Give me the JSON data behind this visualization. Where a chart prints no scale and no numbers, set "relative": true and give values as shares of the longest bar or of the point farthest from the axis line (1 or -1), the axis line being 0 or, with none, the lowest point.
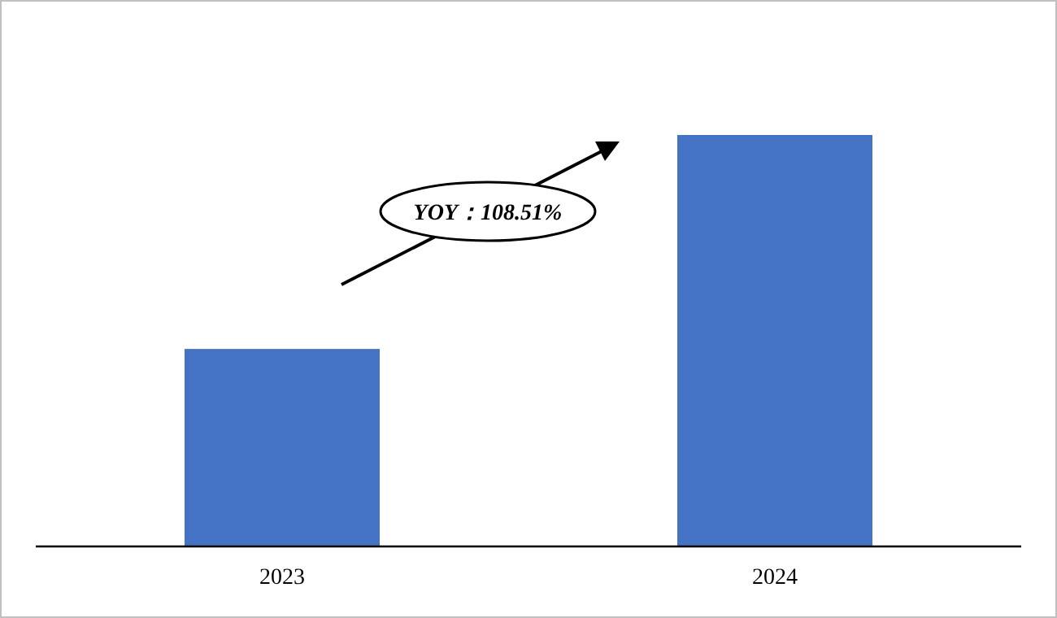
{
  "chart_data": {
    "type": "bar",
    "relative": true,
    "categories": [
      "2023",
      "2024"
    ],
    "values": [
      0.48,
      1
    ],
    "color": "#4472c4",
    "annotations": [
      "YOY：108.51%"
    ]
  }
}
